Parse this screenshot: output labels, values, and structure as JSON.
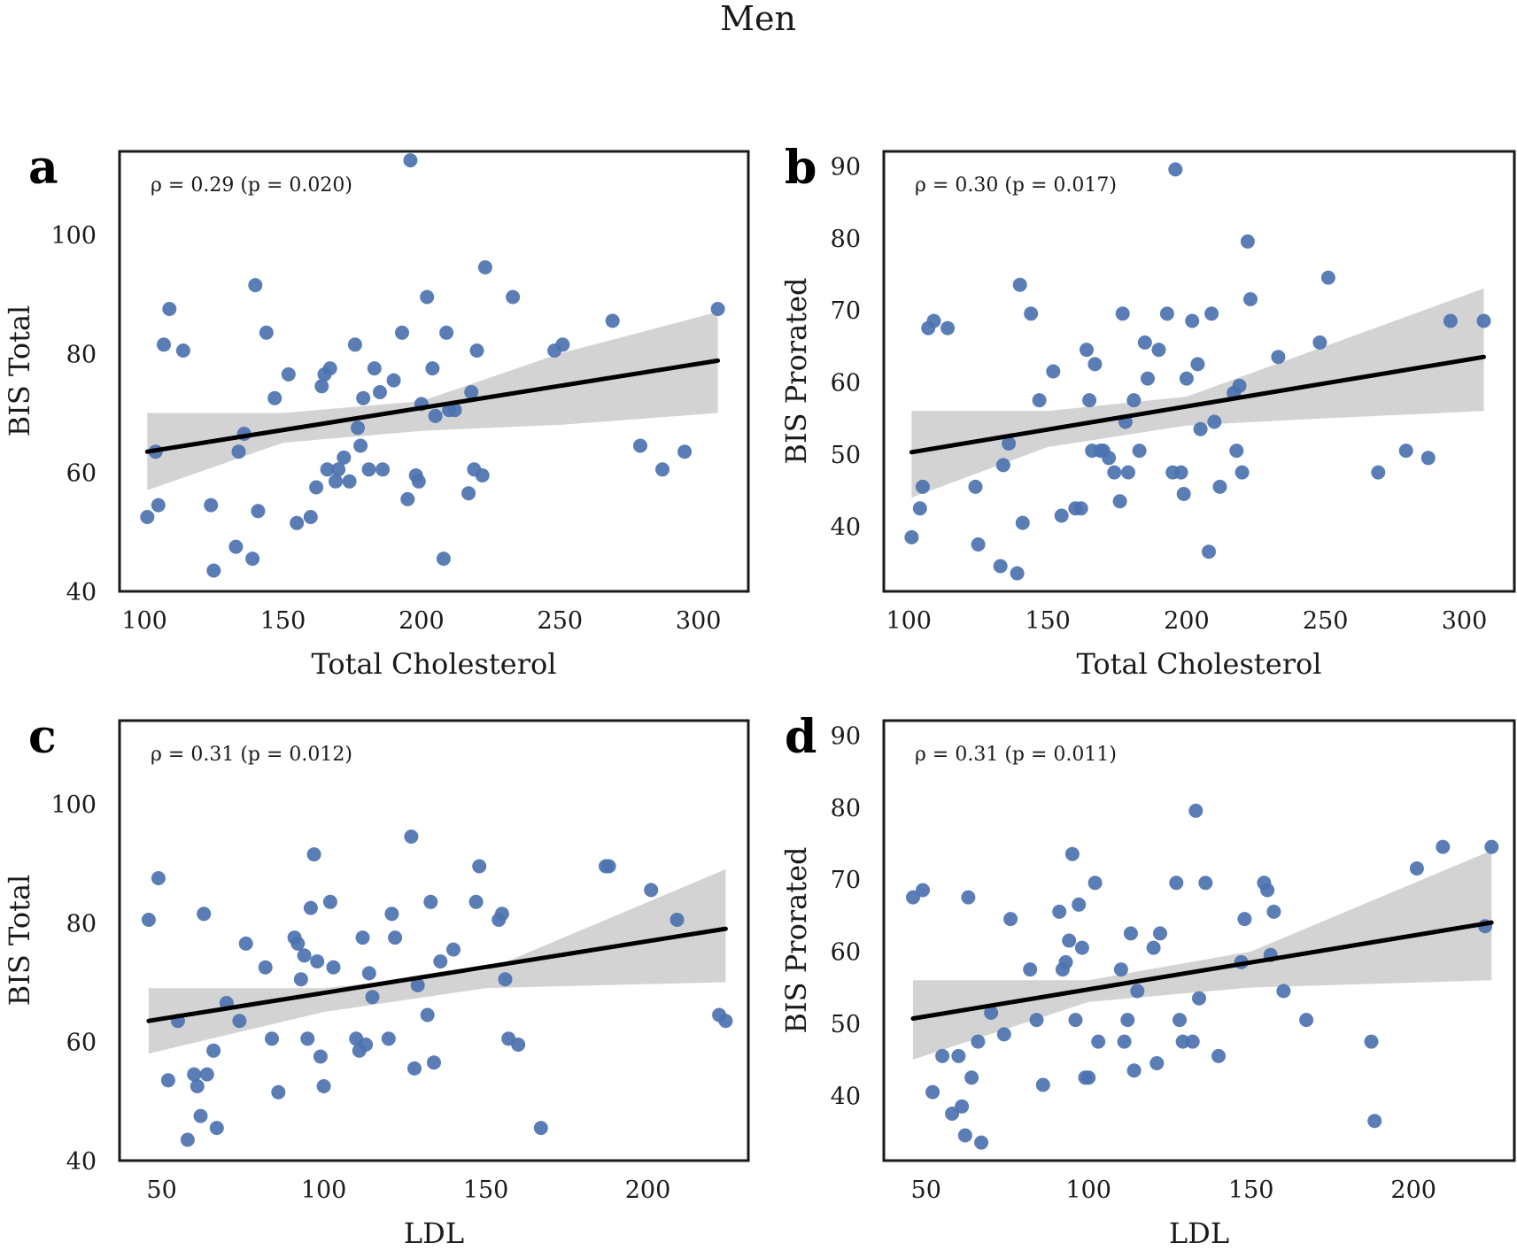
{
  "figure_title": "Men",
  "colors": {
    "points": "#4c72b0",
    "fit_line": "#000000",
    "confidence_band": "#d3d3d3",
    "frame": "#1a1a1a"
  },
  "chart_data": [
    {
      "type": "scatter",
      "panel": "a",
      "annotation": "ρ = 0.29 (p = 0.020)",
      "xlabel": "Total Cholesterol",
      "ylabel": "BIS Total",
      "xlim": [
        91,
        318
      ],
      "ylim": [
        40,
        114
      ],
      "xticks": [
        100,
        150,
        200,
        250,
        300
      ],
      "yticks": [
        40,
        60,
        80,
        100
      ],
      "fit": {
        "x": [
          101,
          307
        ],
        "y": [
          63.5,
          78.8
        ]
      },
      "band": {
        "x": [
          101,
          150,
          200,
          250,
          307
        ],
        "upper": [
          70,
          70,
          72,
          80,
          87
        ],
        "lower": [
          57,
          65,
          67,
          68,
          70
        ]
      },
      "points": {
        "x": [
          101,
          104,
          105,
          107,
          109,
          114,
          124,
          125,
          133,
          134,
          136,
          139,
          140,
          141,
          144,
          147,
          152,
          155,
          160,
          162,
          164,
          165,
          166,
          167,
          169,
          170,
          172,
          174,
          176,
          177,
          178,
          179,
          181,
          183,
          185,
          186,
          190,
          193,
          195,
          196,
          198,
          199,
          200,
          202,
          204,
          205,
          208,
          209,
          210,
          212,
          217,
          218,
          219,
          220,
          222,
          223,
          233,
          248,
          251,
          269,
          279,
          287,
          295,
          307
        ],
        "y": [
          52.5,
          63.5,
          54.5,
          81.5,
          87.5,
          80.5,
          54.5,
          43.5,
          47.5,
          63.5,
          66.5,
          45.5,
          91.5,
          53.5,
          83.5,
          72.5,
          76.5,
          51.5,
          52.5,
          57.5,
          74.5,
          76.5,
          60.5,
          77.5,
          58.5,
          60.5,
          62.5,
          58.5,
          81.5,
          67.5,
          64.5,
          72.5,
          60.5,
          77.5,
          73.5,
          60.5,
          75.5,
          83.5,
          55.5,
          112.5,
          59.5,
          58.5,
          71.5,
          89.5,
          77.5,
          69.5,
          45.5,
          83.5,
          70.5,
          70.5,
          56.5,
          73.5,
          60.5,
          80.5,
          59.5,
          94.5,
          89.5,
          80.5,
          81.5,
          85.5,
          64.5,
          60.5,
          63.5,
          87.5
        ]
      }
    },
    {
      "type": "scatter",
      "panel": "b",
      "annotation": "ρ = 0.30 (p = 0.017)",
      "xlabel": "Total Cholesterol",
      "ylabel": "BIS Prorated",
      "xlim": [
        91,
        318
      ],
      "ylim": [
        31,
        92
      ],
      "xticks": [
        100,
        150,
        200,
        250,
        300
      ],
      "yticks": [
        40,
        50,
        60,
        70,
        80,
        90
      ],
      "fit": {
        "x": [
          101,
          307
        ],
        "y": [
          50.3,
          63.5
        ]
      },
      "band": {
        "x": [
          101,
          150,
          200,
          250,
          307
        ],
        "upper": [
          56,
          56,
          58,
          65,
          73
        ],
        "lower": [
          44,
          51,
          54,
          55,
          56
        ]
      },
      "points": {
        "x": [
          101,
          104,
          105,
          107,
          109,
          114,
          124,
          125,
          133,
          134,
          136,
          139,
          140,
          141,
          144,
          147,
          152,
          155,
          160,
          162,
          164,
          165,
          166,
          167,
          169,
          170,
          172,
          174,
          176,
          177,
          178,
          179,
          181,
          183,
          185,
          186,
          190,
          193,
          195,
          196,
          198,
          199,
          200,
          202,
          204,
          205,
          208,
          209,
          210,
          212,
          217,
          218,
          219,
          220,
          222,
          223,
          233,
          248,
          251,
          269,
          279,
          287,
          295,
          307
        ],
        "y": [
          38.5,
          42.5,
          45.5,
          67.5,
          68.5,
          67.5,
          45.5,
          37.5,
          34.5,
          48.5,
          51.5,
          33.5,
          73.5,
          40.5,
          69.5,
          57.5,
          61.5,
          41.5,
          42.5,
          42.5,
          64.5,
          57.5,
          50.5,
          62.5,
          50.5,
          50.5,
          49.5,
          47.5,
          43.5,
          69.5,
          54.5,
          47.5,
          57.5,
          50.5,
          65.5,
          60.5,
          64.5,
          69.5,
          47.5,
          89.5,
          47.5,
          44.5,
          60.5,
          68.5,
          62.5,
          53.5,
          36.5,
          69.5,
          54.5,
          45.5,
          58.5,
          50.5,
          59.5,
          47.5,
          79.5,
          71.5,
          63.5,
          65.5,
          74.5,
          47.5,
          50.5,
          49.5,
          68.5,
          68.5
        ]
      }
    },
    {
      "type": "scatter",
      "panel": "c",
      "annotation": "ρ = 0.31 (p = 0.012)",
      "xlabel": "LDL",
      "ylabel": "BIS Total",
      "xlim": [
        37,
        231
      ],
      "ylim": [
        40,
        114
      ],
      "xticks": [
        50,
        100,
        150,
        200
      ],
      "yticks": [
        40,
        60,
        80,
        100
      ],
      "fit": {
        "x": [
          46,
          224
        ],
        "y": [
          63.5,
          79
        ]
      },
      "band": {
        "x": [
          46,
          100,
          150,
          224
        ],
        "upper": [
          69,
          69,
          72,
          89
        ],
        "lower": [
          58,
          65,
          69,
          70
        ]
      },
      "points": {
        "x": [
          46,
          49,
          52,
          55,
          58,
          60,
          61,
          62,
          63,
          64,
          66,
          67,
          70,
          74,
          76,
          82,
          84,
          86,
          91,
          92,
          93,
          94,
          95,
          96,
          97,
          98,
          99,
          100,
          102,
          103,
          110,
          111,
          112,
          113,
          114,
          115,
          120,
          121,
          122,
          127,
          128,
          129,
          132,
          133,
          134,
          136,
          140,
          147,
          148,
          154,
          155,
          156,
          157,
          160,
          167,
          187,
          188,
          201,
          209,
          222,
          224
        ],
        "y": [
          80.5,
          87.5,
          53.5,
          63.5,
          43.5,
          54.5,
          52.5,
          47.5,
          81.5,
          54.5,
          58.5,
          45.5,
          66.5,
          63.5,
          76.5,
          72.5,
          60.5,
          51.5,
          77.5,
          76.5,
          70.5,
          74.5,
          60.5,
          82.5,
          91.5,
          73.5,
          57.5,
          52.5,
          83.5,
          72.5,
          60.5,
          58.5,
          77.5,
          59.5,
          71.5,
          67.5,
          60.5,
          81.5,
          77.5,
          94.5,
          55.5,
          69.5,
          64.5,
          83.5,
          56.5,
          73.5,
          75.5,
          83.5,
          89.5,
          80.5,
          81.5,
          70.5,
          60.5,
          59.5,
          45.5,
          89.5,
          89.5,
          85.5,
          80.5,
          64.5,
          63.5
        ]
      }
    },
    {
      "type": "scatter",
      "panel": "d",
      "annotation": "ρ = 0.31 (p = 0.011)",
      "xlabel": "LDL",
      "ylabel": "BIS Prorated",
      "xlim": [
        37,
        231
      ],
      "ylim": [
        31,
        92
      ],
      "xticks": [
        50,
        100,
        150,
        200
      ],
      "yticks": [
        40,
        50,
        60,
        70,
        80,
        90
      ],
      "fit": {
        "x": [
          46,
          224
        ],
        "y": [
          50.7,
          64
        ]
      },
      "band": {
        "x": [
          46,
          100,
          150,
          224
        ],
        "upper": [
          56,
          56,
          60,
          74
        ],
        "lower": [
          45,
          53,
          55,
          56
        ]
      },
      "points": {
        "x": [
          46,
          49,
          52,
          55,
          58,
          60,
          61,
          62,
          63,
          64,
          66,
          67,
          70,
          74,
          76,
          82,
          84,
          86,
          91,
          92,
          93,
          94,
          95,
          96,
          97,
          98,
          99,
          100,
          102,
          103,
          110,
          111,
          112,
          113,
          114,
          115,
          120,
          121,
          122,
          127,
          128,
          129,
          132,
          133,
          134,
          136,
          140,
          147,
          148,
          154,
          155,
          156,
          157,
          160,
          167,
          187,
          188,
          201,
          209,
          222,
          224
        ],
        "y": [
          67.5,
          68.5,
          40.5,
          45.5,
          37.5,
          45.5,
          38.5,
          34.5,
          67.5,
          42.5,
          47.5,
          33.5,
          51.5,
          48.5,
          64.5,
          57.5,
          50.5,
          41.5,
          65.5,
          57.5,
          58.5,
          61.5,
          73.5,
          50.5,
          66.5,
          60.5,
          42.5,
          42.5,
          69.5,
          47.5,
          57.5,
          47.5,
          50.5,
          62.5,
          43.5,
          54.5,
          60.5,
          44.5,
          62.5,
          69.5,
          50.5,
          47.5,
          47.5,
          79.5,
          53.5,
          69.5,
          45.5,
          58.5,
          64.5,
          69.5,
          68.5,
          59.5,
          65.5,
          54.5,
          50.5,
          47.5,
          36.5,
          71.5,
          74.5,
          63.5,
          74.5
        ]
      }
    }
  ]
}
